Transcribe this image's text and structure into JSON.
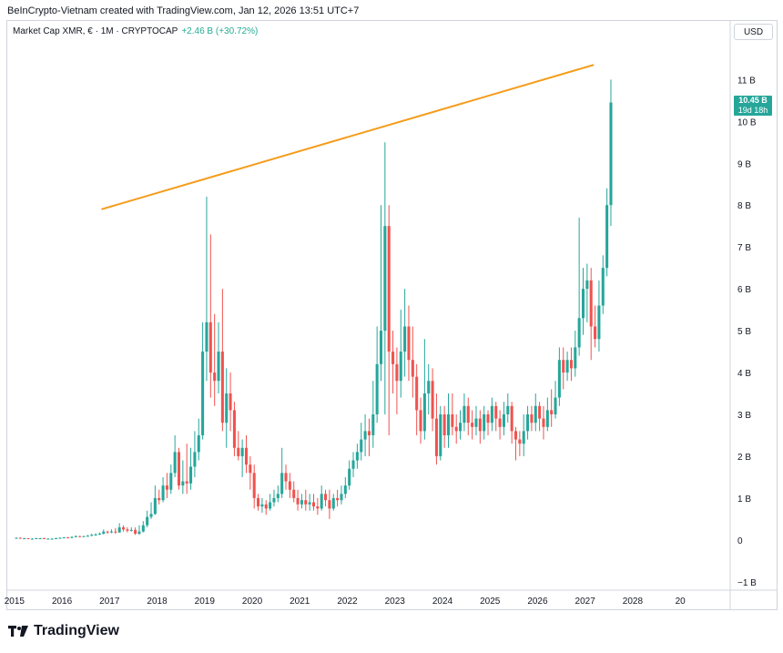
{
  "header": {
    "title": "BeInCrypto-Vietnam created with TradingView.com, Jan 12, 2026 13:51 UTC+7"
  },
  "legend": {
    "symbol": "Market Cap XMR, € · 1M · CRYPTOCAP",
    "change": "+2.46 B (+30.72%)"
  },
  "currency": "USD",
  "last_price": {
    "value": "10.45 B",
    "countdown": "19d 18h"
  },
  "brand": "TradingView",
  "colors": {
    "up": "#26a69a",
    "down": "#ef5350",
    "trendline": "#f59c1a",
    "axis_text": "#131722"
  },
  "chart_data": {
    "type": "candlestick",
    "interval": "1M",
    "y_unit": "B",
    "ylim": [
      -1.2,
      12.4
    ],
    "xlim": [
      2014.85,
      2030.05
    ],
    "y_ticks": [
      "11 B",
      "10 B",
      "9 B",
      "8 B",
      "7 B",
      "6 B",
      "5 B",
      "4 B",
      "3 B",
      "2 B",
      "1 B",
      "0",
      "−1 B"
    ],
    "y_tick_values": [
      11,
      10,
      9,
      8,
      7,
      6,
      5,
      4,
      3,
      2,
      1,
      0,
      -1
    ],
    "x_ticks": [
      "2015",
      "2016",
      "2017",
      "2018",
      "2019",
      "2020",
      "2021",
      "2022",
      "2023",
      "2024",
      "2025",
      "2026",
      "2027",
      "2028",
      "20"
    ],
    "x_tick_values": [
      2015,
      2016,
      2017,
      2018,
      2019,
      2020,
      2021,
      2022,
      2023,
      2024,
      2025,
      2026,
      2027,
      2028,
      2029
    ],
    "trendline": {
      "x1": 2016.83,
      "y1": 7.9,
      "x2": 2027.18,
      "y2": 11.35
    },
    "candles": [
      [
        0.05,
        0.05,
        0.04,
        0.06
      ],
      [
        0.05,
        0.04,
        0.04,
        0.06
      ],
      [
        0.04,
        0.04,
        0.03,
        0.05
      ],
      [
        0.04,
        0.03,
        0.03,
        0.04
      ],
      [
        0.03,
        0.03,
        0.02,
        0.04
      ],
      [
        0.03,
        0.04,
        0.02,
        0.05
      ],
      [
        0.04,
        0.04,
        0.03,
        0.05
      ],
      [
        0.04,
        0.03,
        0.03,
        0.05
      ],
      [
        0.03,
        0.03,
        0.02,
        0.04
      ],
      [
        0.03,
        0.03,
        0.02,
        0.04
      ],
      [
        0.03,
        0.04,
        0.02,
        0.05
      ],
      [
        0.04,
        0.05,
        0.03,
        0.06
      ],
      [
        0.05,
        0.06,
        0.04,
        0.07
      ],
      [
        0.06,
        0.05,
        0.04,
        0.07
      ],
      [
        0.05,
        0.07,
        0.04,
        0.09
      ],
      [
        0.07,
        0.09,
        0.06,
        0.11
      ],
      [
        0.09,
        0.08,
        0.07,
        0.1
      ],
      [
        0.08,
        0.09,
        0.07,
        0.1
      ],
      [
        0.09,
        0.1,
        0.08,
        0.12
      ],
      [
        0.1,
        0.12,
        0.09,
        0.15
      ],
      [
        0.12,
        0.13,
        0.1,
        0.16
      ],
      [
        0.13,
        0.15,
        0.12,
        0.18
      ],
      [
        0.15,
        0.2,
        0.13,
        0.25
      ],
      [
        0.2,
        0.18,
        0.15,
        0.22
      ],
      [
        0.18,
        0.2,
        0.16,
        0.25
      ],
      [
        0.2,
        0.18,
        0.15,
        0.28
      ],
      [
        0.18,
        0.3,
        0.17,
        0.4
      ],
      [
        0.3,
        0.25,
        0.2,
        0.35
      ],
      [
        0.25,
        0.22,
        0.18,
        0.3
      ],
      [
        0.22,
        0.24,
        0.2,
        0.3
      ],
      [
        0.24,
        0.15,
        0.12,
        0.3
      ],
      [
        0.15,
        0.2,
        0.12,
        0.35
      ],
      [
        0.2,
        0.35,
        0.18,
        0.45
      ],
      [
        0.35,
        0.55,
        0.3,
        0.7
      ],
      [
        0.55,
        0.62,
        0.5,
        0.9
      ],
      [
        0.62,
        1.0,
        0.6,
        1.3
      ],
      [
        1.0,
        0.95,
        0.85,
        1.2
      ],
      [
        0.95,
        1.3,
        0.9,
        1.5
      ],
      [
        1.3,
        1.2,
        1.0,
        1.6
      ],
      [
        1.2,
        1.6,
        1.1,
        1.8
      ],
      [
        1.6,
        2.1,
        1.5,
        2.5
      ],
      [
        2.1,
        1.3,
        1.2,
        2.2
      ],
      [
        1.3,
        1.4,
        1.1,
        1.9
      ],
      [
        1.4,
        1.35,
        1.1,
        2.3
      ],
      [
        1.35,
        1.75,
        1.2,
        2.2
      ],
      [
        1.75,
        2.1,
        1.5,
        2.6
      ],
      [
        2.1,
        2.5,
        1.9,
        2.9
      ],
      [
        2.5,
        4.5,
        2.4,
        5.2
      ],
      [
        4.5,
        5.2,
        3.8,
        8.2
      ],
      [
        5.2,
        4.0,
        3.4,
        7.3
      ],
      [
        4.0,
        3.8,
        3.2,
        5.4
      ],
      [
        3.8,
        4.5,
        3.5,
        5.2
      ],
      [
        4.5,
        2.8,
        2.6,
        6.0
      ],
      [
        2.8,
        3.5,
        2.2,
        4.1
      ],
      [
        3.5,
        3.1,
        2.6,
        4.0
      ],
      [
        3.1,
        2.2,
        2.0,
        3.3
      ],
      [
        2.2,
        2.0,
        1.9,
        2.6
      ],
      [
        2.0,
        2.2,
        1.5,
        2.4
      ],
      [
        2.2,
        1.8,
        1.6,
        2.5
      ],
      [
        1.8,
        1.6,
        1.2,
        2.0
      ],
      [
        1.6,
        1.0,
        0.75,
        1.8
      ],
      [
        1.0,
        0.8,
        0.7,
        1.1
      ],
      [
        0.8,
        0.85,
        0.65,
        1.0
      ],
      [
        0.85,
        0.75,
        0.6,
        0.95
      ],
      [
        0.75,
        0.9,
        0.7,
        1.1
      ],
      [
        0.9,
        1.0,
        0.8,
        1.2
      ],
      [
        1.0,
        1.1,
        0.9,
        1.3
      ],
      [
        1.1,
        1.6,
        1.0,
        2.2
      ],
      [
        1.6,
        1.4,
        1.2,
        1.8
      ],
      [
        1.4,
        1.2,
        1.0,
        1.6
      ],
      [
        1.2,
        1.0,
        0.9,
        1.4
      ],
      [
        1.0,
        0.85,
        0.7,
        1.2
      ],
      [
        0.85,
        0.95,
        0.75,
        1.1
      ],
      [
        0.95,
        0.85,
        0.7,
        1.2
      ],
      [
        0.85,
        0.9,
        0.7,
        1.1
      ],
      [
        0.9,
        0.8,
        0.7,
        1.1
      ],
      [
        0.8,
        0.75,
        0.6,
        1.0
      ],
      [
        0.75,
        1.1,
        0.7,
        1.3
      ],
      [
        1.1,
        0.95,
        0.8,
        1.2
      ],
      [
        0.95,
        0.75,
        0.5,
        1.2
      ],
      [
        0.75,
        1.0,
        0.7,
        1.1
      ],
      [
        1.0,
        0.95,
        0.8,
        1.2
      ],
      [
        0.95,
        1.1,
        0.85,
        1.3
      ],
      [
        1.1,
        1.3,
        1.0,
        1.5
      ],
      [
        1.3,
        1.7,
        1.2,
        1.9
      ],
      [
        1.7,
        1.9,
        1.5,
        2.1
      ],
      [
        1.9,
        2.1,
        1.7,
        2.3
      ],
      [
        2.1,
        2.4,
        1.9,
        2.8
      ],
      [
        2.4,
        2.6,
        2.0,
        3.0
      ],
      [
        2.6,
        2.5,
        2.0,
        2.9
      ],
      [
        2.5,
        3.0,
        2.2,
        3.8
      ],
      [
        3.0,
        4.2,
        2.8,
        5.1
      ],
      [
        4.2,
        5.0,
        3.8,
        8.0
      ],
      [
        5.0,
        7.5,
        3.0,
        9.5
      ],
      [
        7.5,
        4.5,
        2.5,
        8.0
      ],
      [
        4.5,
        4.2,
        3.5,
        5.0
      ],
      [
        4.2,
        3.8,
        3.0,
        4.6
      ],
      [
        3.8,
        4.5,
        3.4,
        5.5
      ],
      [
        4.5,
        5.1,
        3.9,
        6.0
      ],
      [
        5.1,
        4.3,
        3.8,
        5.6
      ],
      [
        4.3,
        3.9,
        3.4,
        5.1
      ],
      [
        3.9,
        3.1,
        2.5,
        4.2
      ],
      [
        3.1,
        2.6,
        2.3,
        3.4
      ],
      [
        2.6,
        3.5,
        2.4,
        4.8
      ],
      [
        3.5,
        3.8,
        3.0,
        4.2
      ],
      [
        3.8,
        2.9,
        2.6,
        4.1
      ],
      [
        2.9,
        2.0,
        1.8,
        3.5
      ],
      [
        2.0,
        3.0,
        1.9,
        3.2
      ],
      [
        3.0,
        2.5,
        2.2,
        3.2
      ],
      [
        2.5,
        3.0,
        2.2,
        3.5
      ],
      [
        3.0,
        2.7,
        2.5,
        3.5
      ],
      [
        2.7,
        2.6,
        2.3,
        3.0
      ],
      [
        2.6,
        2.8,
        2.4,
        3.1
      ],
      [
        2.8,
        3.2,
        2.6,
        3.5
      ],
      [
        3.2,
        2.8,
        2.5,
        3.4
      ],
      [
        2.8,
        2.7,
        2.4,
        3.1
      ],
      [
        2.7,
        2.9,
        2.5,
        3.2
      ],
      [
        2.9,
        2.6,
        2.3,
        3.1
      ],
      [
        2.6,
        3.0,
        2.4,
        3.2
      ],
      [
        3.0,
        2.8,
        2.5,
        3.1
      ],
      [
        2.8,
        3.2,
        2.6,
        3.4
      ],
      [
        3.2,
        2.9,
        2.6,
        3.3
      ],
      [
        2.9,
        2.7,
        2.4,
        3.1
      ],
      [
        2.7,
        3.0,
        2.5,
        3.3
      ],
      [
        3.0,
        3.2,
        2.8,
        3.5
      ],
      [
        3.2,
        2.6,
        2.3,
        3.3
      ],
      [
        2.6,
        2.4,
        1.9,
        2.7
      ],
      [
        2.4,
        2.3,
        2.0,
        2.6
      ],
      [
        2.3,
        2.6,
        2.0,
        3.0
      ],
      [
        2.6,
        3.0,
        2.4,
        3.2
      ],
      [
        3.0,
        2.8,
        2.6,
        3.2
      ],
      [
        2.8,
        3.2,
        2.6,
        3.5
      ],
      [
        3.2,
        2.9,
        2.6,
        3.3
      ],
      [
        2.9,
        2.7,
        2.4,
        3.2
      ],
      [
        2.7,
        3.1,
        2.6,
        3.4
      ],
      [
        3.1,
        3.0,
        2.7,
        3.6
      ],
      [
        3.0,
        3.4,
        2.9,
        3.8
      ],
      [
        3.4,
        4.3,
        3.2,
        4.6
      ],
      [
        4.3,
        4.0,
        3.6,
        4.6
      ],
      [
        4.0,
        4.3,
        3.8,
        4.5
      ],
      [
        4.3,
        4.1,
        3.8,
        4.6
      ],
      [
        4.1,
        4.6,
        3.9,
        5.0
      ],
      [
        4.6,
        5.3,
        4.4,
        7.7
      ],
      [
        5.3,
        6.0,
        4.9,
        6.5
      ],
      [
        6.0,
        6.2,
        5.2,
        6.6
      ],
      [
        6.2,
        5.1,
        4.3,
        6.5
      ],
      [
        5.1,
        4.8,
        4.6,
        5.6
      ],
      [
        4.8,
        5.6,
        4.5,
        6.2
      ],
      [
        5.6,
        6.5,
        5.4,
        6.8
      ],
      [
        6.5,
        8.0,
        6.3,
        8.4
      ],
      [
        8.0,
        10.45,
        7.5,
        11.0
      ]
    ]
  }
}
